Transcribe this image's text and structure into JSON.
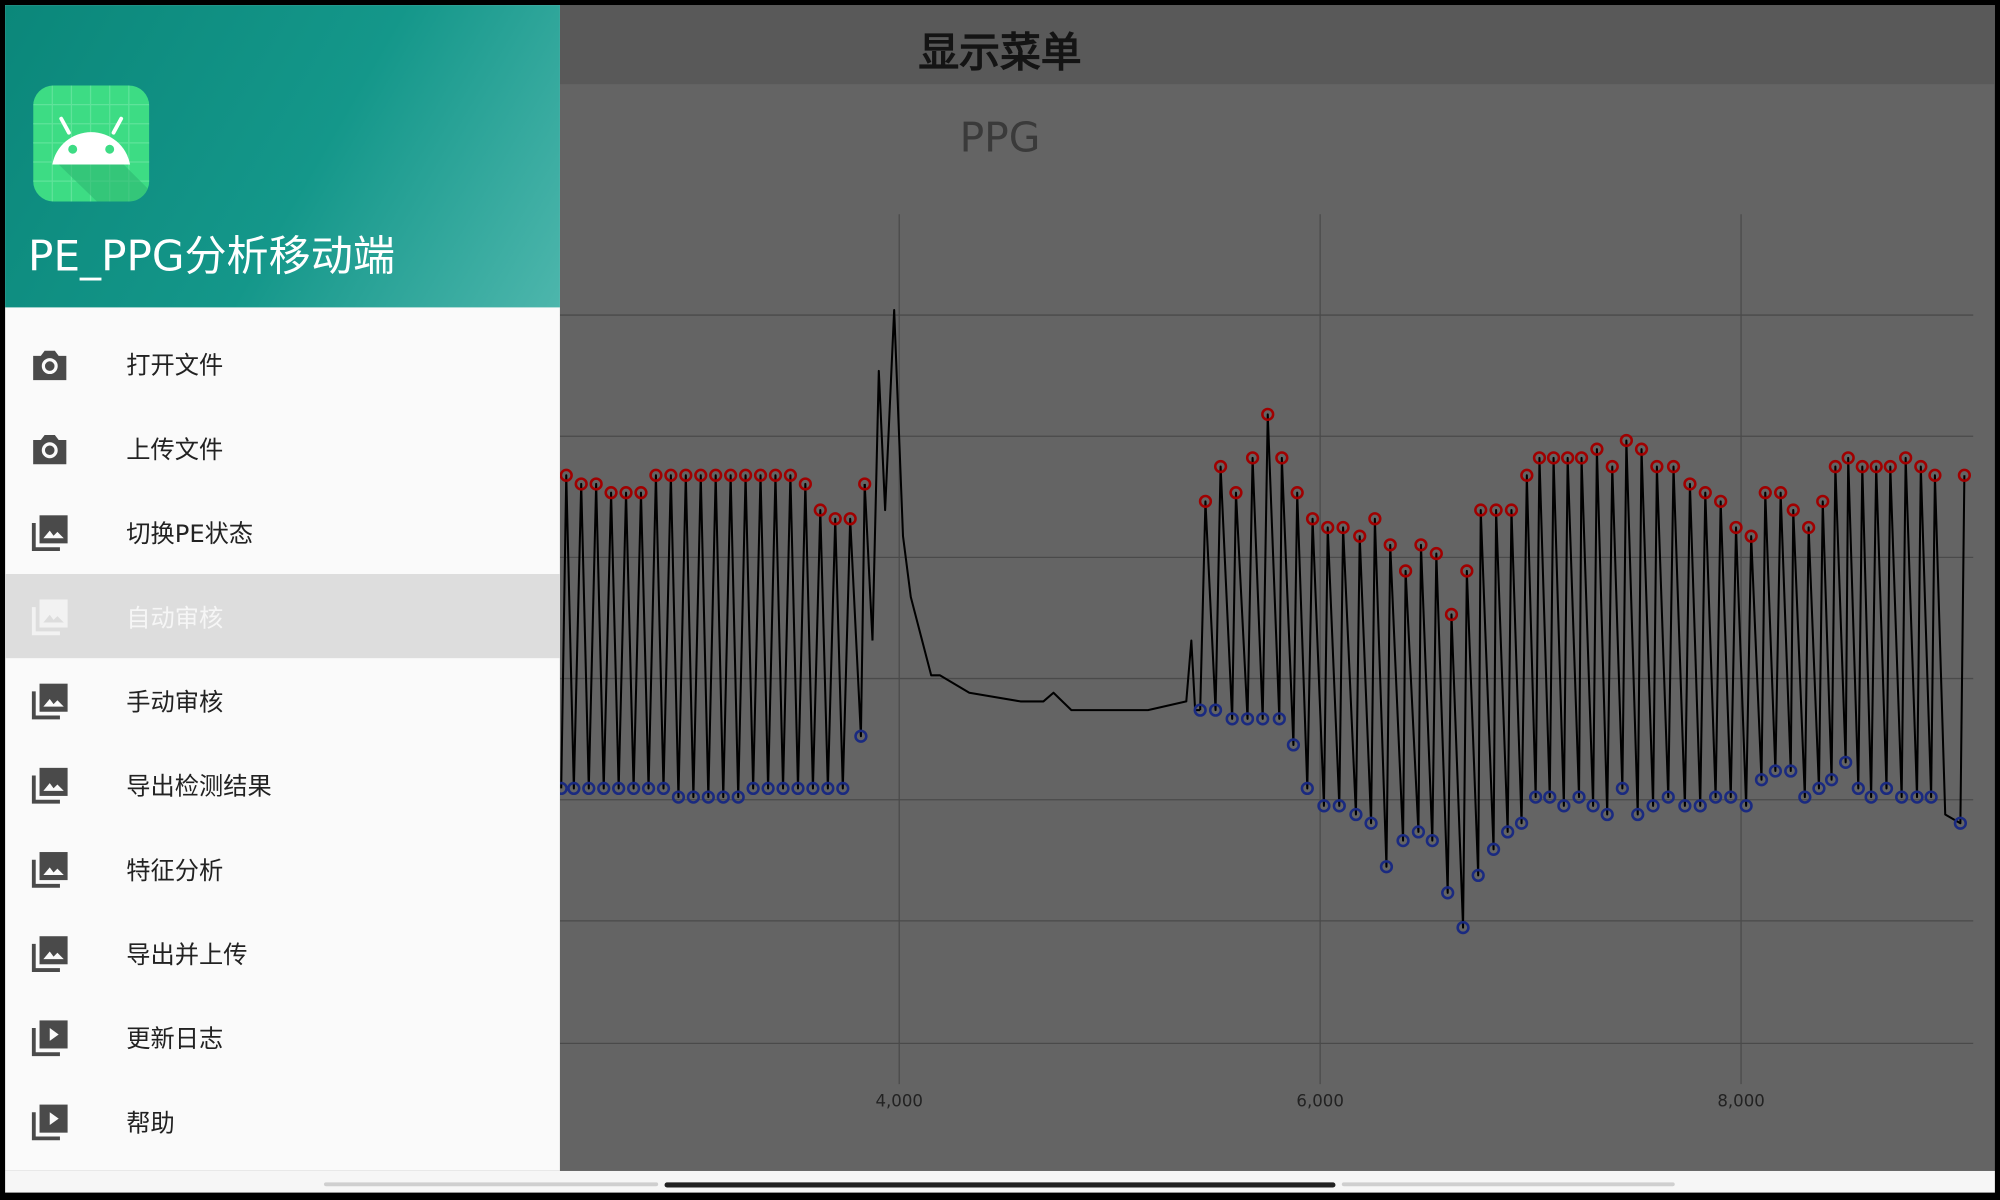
{
  "toolbar": {
    "title": "显示菜单"
  },
  "drawer": {
    "app_title": "PE_PPG分析移动端",
    "menu": [
      "打开文件",
      "上传文件",
      "切换PE状态",
      "自动审核",
      "手动审核",
      "导出检测结果",
      "特征分析",
      "导出并上传",
      "更新日志",
      "帮助"
    ]
  },
  "chart_data": {
    "type": "line",
    "title": "PPG",
    "xlim": [
      2388,
      9103
    ],
    "ylim": [
      0,
      100
    ],
    "xticks": [
      {
        "value": 4000,
        "label": "4,000"
      },
      {
        "value": 6000,
        "label": "6,000"
      },
      {
        "value": 8000,
        "label": "8,000"
      }
    ],
    "grid": true,
    "peak_color": "#a00000",
    "trough_color": "#1a2a80",
    "series": [
      {
        "color": "#000000",
        "markers": true,
        "x": [
          2394,
          2418,
          2454,
          2489,
          2525,
          2560,
          2596,
          2631,
          2667,
          2702,
          2738,
          2773,
          2809,
          2844,
          2880,
          2915,
          2951,
          2986,
          3022,
          3057,
          3093,
          3128,
          3164,
          3199,
          3235,
          3270,
          3306,
          3341,
          3377,
          3412,
          3448,
          3483,
          3519,
          3554,
          3590,
          3625,
          3661,
          3696,
          3732,
          3767,
          3818,
          3836
        ],
        "values": [
          34,
          70,
          34,
          69,
          34,
          69,
          34,
          68,
          34,
          68,
          34,
          68,
          34,
          70,
          34,
          70,
          33,
          70,
          33,
          70,
          33,
          70,
          33,
          70,
          33,
          70,
          34,
          70,
          34,
          70,
          34,
          70,
          34,
          69,
          34,
          66,
          34,
          65,
          34,
          65,
          40,
          69
        ]
      },
      {
        "color": "#000000",
        "markers": false,
        "x": [
          3873,
          3903,
          3933,
          3976,
          4018,
          4055,
          4152,
          4194,
          4333,
          4576,
          4685,
          4733,
          4818,
          5182,
          5364,
          5388,
          5406
        ],
        "values": [
          51,
          82,
          66,
          89,
          63,
          56,
          47,
          47,
          45,
          44,
          44,
          45,
          43,
          43,
          44,
          51,
          43
        ]
      },
      {
        "color": "#000000",
        "markers": true,
        "x": [
          5430,
          5455,
          5503,
          5527,
          5582,
          5600,
          5655,
          5679,
          5727,
          5751,
          5806,
          5818,
          5873,
          5891,
          5939,
          5964,
          6018,
          6036,
          6091,
          6109,
          6170,
          6188,
          6242,
          6260,
          6315,
          6333,
          6394,
          6406,
          6467,
          6479,
          6533,
          6552,
          6606,
          6624,
          6679,
          6697,
          6751,
          6763,
          6824,
          6836,
          6891,
          6909,
          6957,
          6982,
          7024,
          7042,
          7091,
          7109,
          7158,
          7176,
          7230,
          7242,
          7297,
          7315,
          7364,
          7388,
          7436,
          7455,
          7509,
          7527,
          7582,
          7600,
          7654,
          7679,
          7733,
          7757,
          7806,
          7830,
          7879,
          7903,
          7951,
          7976,
          8024,
          8048,
          8097,
          8115,
          8163,
          8188,
          8236,
          8248,
          8303,
          8321,
          8370,
          8388,
          8430,
          8448,
          8497,
          8509,
          8557,
          8576,
          8618,
          8642,
          8691,
          8709,
          8763,
          8782,
          8836,
          8854,
          8903,
          8921,
          8970,
          9042,
          9061
        ],
        "values": [
          43,
          67,
          43,
          71,
          42,
          68,
          42,
          72,
          42,
          77,
          42,
          72,
          39,
          68,
          34,
          65,
          32,
          64,
          32,
          64,
          31,
          63,
          30,
          65,
          25,
          62,
          28,
          59,
          29,
          62,
          28,
          61,
          22,
          54,
          18,
          59,
          24,
          66,
          27,
          66,
          29,
          66,
          30,
          70,
          33,
          72,
          33,
          72,
          32,
          72,
          33,
          72,
          32,
          73,
          31,
          71,
          34,
          74,
          31,
          73,
          32,
          71,
          33,
          71,
          32,
          69,
          32,
          68,
          33,
          67,
          33,
          64,
          32,
          63,
          35,
          68,
          36,
          68,
          36,
          66,
          33,
          64,
          34,
          67,
          35,
          71,
          37,
          72,
          34,
          71,
          33,
          71,
          34,
          71,
          33,
          72,
          33,
          71,
          33,
          70,
          31,
          30,
          70
        ]
      }
    ]
  }
}
